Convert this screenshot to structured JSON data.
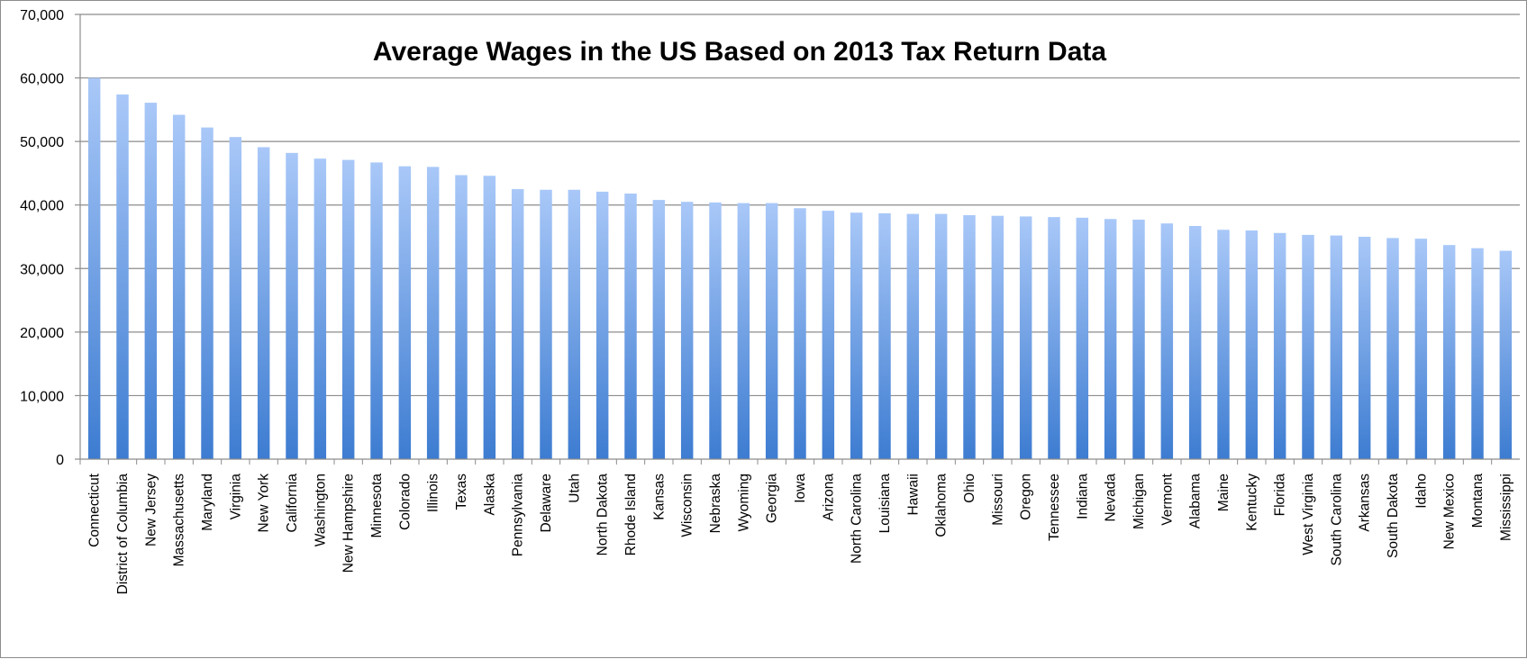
{
  "chart_data": {
    "type": "bar",
    "title": "Average Wages in the US Based on 2013 Tax Return Data",
    "xlabel": "",
    "ylabel": "",
    "ylim": [
      0,
      70000
    ],
    "yticks": [
      0,
      10000,
      20000,
      30000,
      40000,
      50000,
      60000,
      70000
    ],
    "ytick_labels": [
      "0",
      "10,000",
      "20,000",
      "30,000",
      "40,000",
      "50,000",
      "60,000",
      "70,000"
    ],
    "grid": true,
    "legend": "none",
    "categories": [
      "Connecticut",
      "District of Columbia",
      "New Jersey",
      "Massachusetts",
      "Maryland",
      "Virginia",
      "New York",
      "California",
      "Washington",
      "New Hampshire",
      "Minnesota",
      "Colorado",
      "Illinois",
      "Texas",
      "Alaska",
      "Pennsylvania",
      "Delaware",
      "Utah",
      "North Dakota",
      "Rhode Island",
      "Kansas",
      "Wisconsin",
      "Nebraska",
      "Wyoming",
      "Georgia",
      "Iowa",
      "Arizona",
      "North Carolina",
      "Louisiana",
      "Hawaii",
      "Oklahoma",
      "Ohio",
      "Missouri",
      "Oregon",
      "Tennessee",
      "Indiana",
      "Nevada",
      "Michigan",
      "Vermont",
      "Alabama",
      "Maine",
      "Kentucky",
      "Florida",
      "West Virginia",
      "South Carolina",
      "Arkansas",
      "South Dakota",
      "Idaho",
      "New Mexico",
      "Montana",
      "Mississippi"
    ],
    "values": [
      60000,
      57400,
      56100,
      54200,
      52200,
      50700,
      49100,
      48200,
      47300,
      47100,
      46700,
      46100,
      46000,
      44700,
      44600,
      42500,
      42400,
      42400,
      42100,
      41800,
      40800,
      40500,
      40400,
      40300,
      40300,
      39500,
      39100,
      38800,
      38700,
      38600,
      38600,
      38400,
      38300,
      38200,
      38100,
      38000,
      37800,
      37700,
      37100,
      36700,
      36100,
      36000,
      35600,
      35300,
      35200,
      35000,
      34800,
      34700,
      33700,
      33200,
      32800
    ],
    "colors": {
      "bar_top": "#a9c8f8",
      "bar_bottom": "#3d7cd1",
      "grid": "#8c8c8c",
      "axis": "#8c8c8c"
    }
  }
}
